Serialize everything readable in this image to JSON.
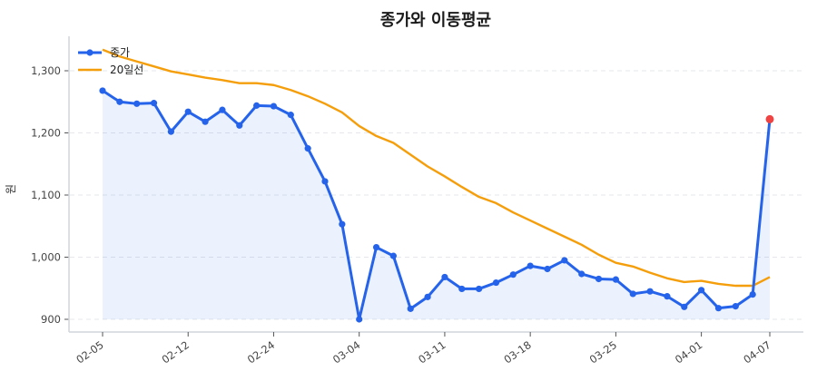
{
  "chart_data": {
    "type": "line",
    "title": "종가와 이동평균",
    "xlabel": "",
    "ylabel": "원",
    "ylim": [
      880,
      1355
    ],
    "grid": true,
    "legend_position": "upper left",
    "x": [
      "02-05",
      "02-06",
      "02-07",
      "02-10",
      "02-11",
      "02-12",
      "02-13",
      "02-14",
      "02-17",
      "02-18",
      "02-24",
      "02-25",
      "02-26",
      "02-27",
      "02-28",
      "03-04",
      "03-05",
      "03-06",
      "03-07",
      "03-10",
      "03-11",
      "03-12",
      "03-13",
      "03-14",
      "03-17",
      "03-18",
      "03-19",
      "03-20",
      "03-21",
      "03-24",
      "03-25",
      "03-26",
      "03-27",
      "03-28",
      "03-31",
      "04-01",
      "04-02",
      "04-03",
      "04-04",
      "04-07"
    ],
    "x_tick_labels": [
      "02-05",
      "02-12",
      "02-24",
      "03-04",
      "03-11",
      "03-18",
      "03-25",
      "04-01",
      "04-07"
    ],
    "x_tick_indices": [
      0,
      5,
      10,
      15,
      20,
      25,
      30,
      35,
      39
    ],
    "y_ticks": [
      900,
      1000,
      1100,
      1200,
      1300
    ],
    "y_tick_labels": [
      "900",
      "1,000",
      "1,100",
      "1,200",
      "1,300"
    ],
    "series": [
      {
        "name": "종가",
        "color": "#2563eb",
        "marker": "circle",
        "fill": "#2563eb1a",
        "values": [
          1268,
          1250,
          1247,
          1248,
          1202,
          1234,
          1218,
          1237,
          1212,
          1244,
          1243,
          1229,
          1175,
          1122,
          1053,
          900,
          1016,
          1002,
          917,
          936,
          968,
          949,
          949,
          959,
          972,
          986,
          981,
          995,
          973,
          965,
          964,
          941,
          945,
          937,
          920,
          947,
          918,
          921,
          940,
          1222
        ],
        "highlight_last": {
          "color": "#ef4444"
        }
      },
      {
        "name": "20일선",
        "color": "#f59e0b",
        "values": [
          1334,
          1323,
          1315,
          1307,
          1299,
          1294,
          1289,
          1285,
          1280,
          1280,
          1277,
          1269,
          1259,
          1247,
          1233,
          1211,
          1195,
          1184,
          1165,
          1146,
          1130,
          1113,
          1097,
          1087,
          1072,
          1059,
          1046,
          1033,
          1020,
          1004,
          991,
          985,
          975,
          966,
          960,
          962,
          957,
          954,
          954,
          968
        ]
      }
    ]
  },
  "legend": {
    "items": [
      {
        "label": "종가"
      },
      {
        "label": "20일선"
      }
    ]
  }
}
